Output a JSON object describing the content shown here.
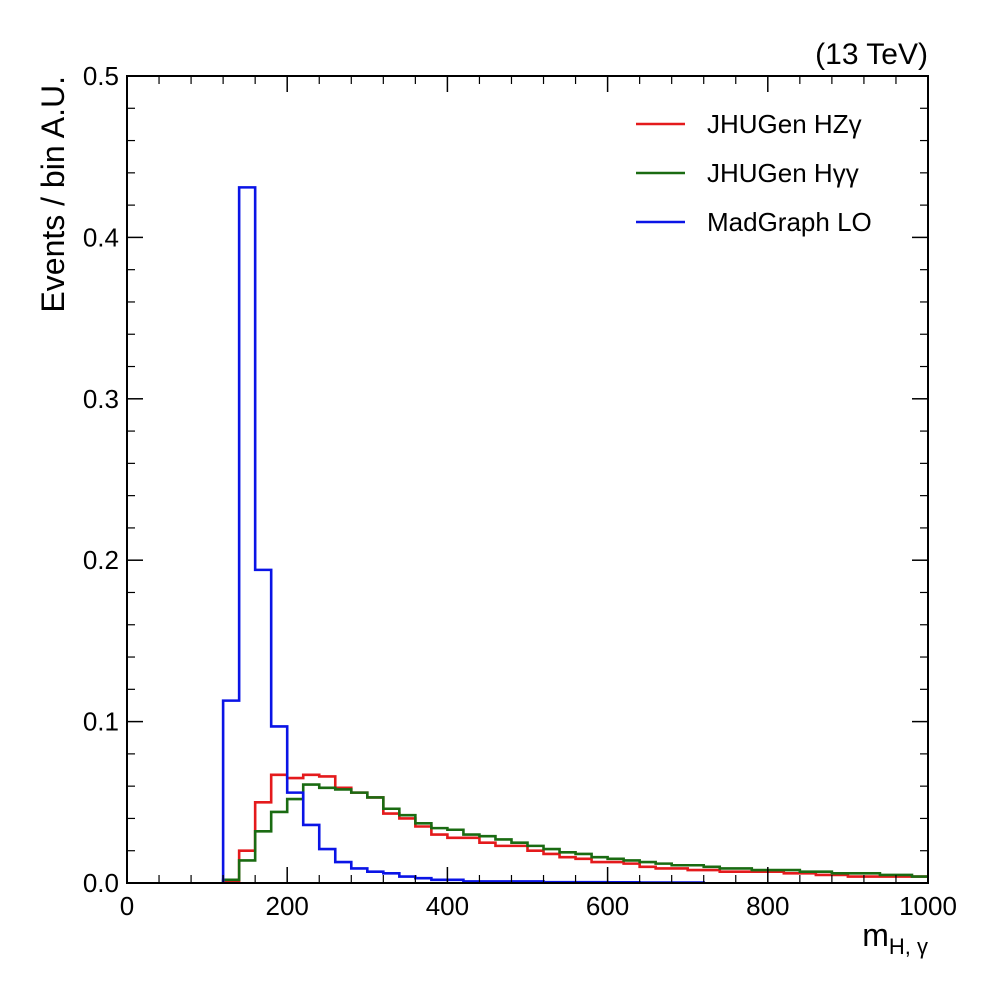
{
  "chart_data": {
    "type": "line",
    "subtype": "histogram-step",
    "energy_label": "(13 TeV)",
    "xlabel_main": "m",
    "xlabel_sub": "H, γ",
    "ylabel": "Events / bin A.U.",
    "xlim": [
      0,
      1000
    ],
    "ylim": [
      0,
      0.5
    ],
    "x_ticks": [
      0,
      200,
      400,
      600,
      800,
      1000
    ],
    "x_tick_labels": [
      "0",
      "200",
      "400",
      "600",
      "800",
      "1000"
    ],
    "y_ticks": [
      0,
      0.1,
      0.2,
      0.3,
      0.4,
      0.5
    ],
    "y_tick_labels": [
      "0.0",
      "0.1",
      "0.2",
      "0.3",
      "0.4",
      "0.5"
    ],
    "bin_width": 20,
    "legend_position": "top-right",
    "grid": false,
    "series": [
      {
        "name": "JHUGen HZγ",
        "color": "#e41a1c",
        "bin_start": 120,
        "values": [
          0.001,
          0.02,
          0.05,
          0.067,
          0.065,
          0.067,
          0.066,
          0.059,
          0.056,
          0.053,
          0.043,
          0.04,
          0.035,
          0.03,
          0.028,
          0.028,
          0.025,
          0.023,
          0.023,
          0.02,
          0.018,
          0.016,
          0.015,
          0.013,
          0.013,
          0.012,
          0.01,
          0.009,
          0.009,
          0.008,
          0.008,
          0.007,
          0.007,
          0.007,
          0.007,
          0.006,
          0.006,
          0.005,
          0.005,
          0.004,
          0.004,
          0.004,
          0.004,
          0.004
        ]
      },
      {
        "name": "JHUGen Hγγ",
        "color": "#1a6b12",
        "bin_start": 120,
        "values": [
          0.002,
          0.014,
          0.032,
          0.044,
          0.052,
          0.061,
          0.059,
          0.058,
          0.056,
          0.053,
          0.046,
          0.042,
          0.037,
          0.034,
          0.033,
          0.03,
          0.029,
          0.027,
          0.025,
          0.023,
          0.021,
          0.019,
          0.018,
          0.016,
          0.015,
          0.014,
          0.013,
          0.012,
          0.011,
          0.011,
          0.01,
          0.009,
          0.009,
          0.008,
          0.008,
          0.008,
          0.007,
          0.007,
          0.006,
          0.006,
          0.006,
          0.005,
          0.005,
          0.004
        ]
      },
      {
        "name": "MadGraph LO",
        "color": "#0a14e6",
        "bin_start": 120,
        "values": [
          0.113,
          0.431,
          0.194,
          0.097,
          0.056,
          0.036,
          0.021,
          0.013,
          0.009,
          0.007,
          0.006,
          0.004,
          0.003,
          0.002,
          0.002,
          0.001,
          0.001,
          0.001,
          0.001,
          0.001,
          0.0005,
          0.0005,
          0.0005,
          0.0005,
          0.0004,
          0.0004,
          0.0003,
          0.0003,
          0.0003,
          0.0003
        ]
      }
    ]
  }
}
